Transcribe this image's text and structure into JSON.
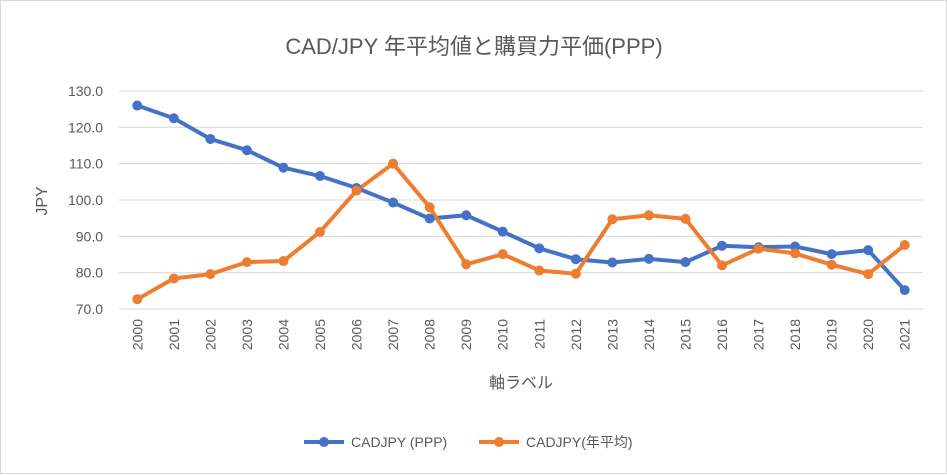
{
  "chart_data": {
    "type": "line",
    "title": "CAD/JPY 年平均値と購買力平価(PPP)",
    "xlabel": "軸ラベル",
    "ylabel": "JPY",
    "ylim": [
      70,
      130
    ],
    "yticks": [
      "70.0",
      "80.0",
      "90.0",
      "100.0",
      "110.0",
      "120.0",
      "130.0"
    ],
    "categories": [
      "2000",
      "2001",
      "2002",
      "2003",
      "2004",
      "2005",
      "2006",
      "2007",
      "2008",
      "2009",
      "2010",
      "2011",
      "2012",
      "2013",
      "2014",
      "2015",
      "2016",
      "2017",
      "2018",
      "2019",
      "2020",
      "2021"
    ],
    "grid": true,
    "legend_position": "bottom",
    "series": [
      {
        "name": "CADJPY (PPP)",
        "color": "#4472C4",
        "values": [
          126.0,
          122.5,
          116.8,
          113.7,
          108.9,
          106.6,
          103.3,
          99.3,
          94.9,
          95.8,
          91.3,
          86.7,
          83.7,
          82.8,
          83.8,
          82.9,
          87.4,
          87.0,
          87.2,
          85.1,
          86.2,
          75.2
        ]
      },
      {
        "name": "CADJPY(年平均)",
        "color": "#ED7D31",
        "values": [
          72.7,
          78.4,
          79.6,
          82.9,
          83.2,
          91.2,
          102.6,
          110.0,
          98.0,
          82.3,
          85.1,
          80.6,
          79.7,
          94.7,
          95.8,
          94.8,
          82.0,
          86.6,
          85.3,
          82.2,
          79.6,
          87.6
        ]
      }
    ]
  }
}
